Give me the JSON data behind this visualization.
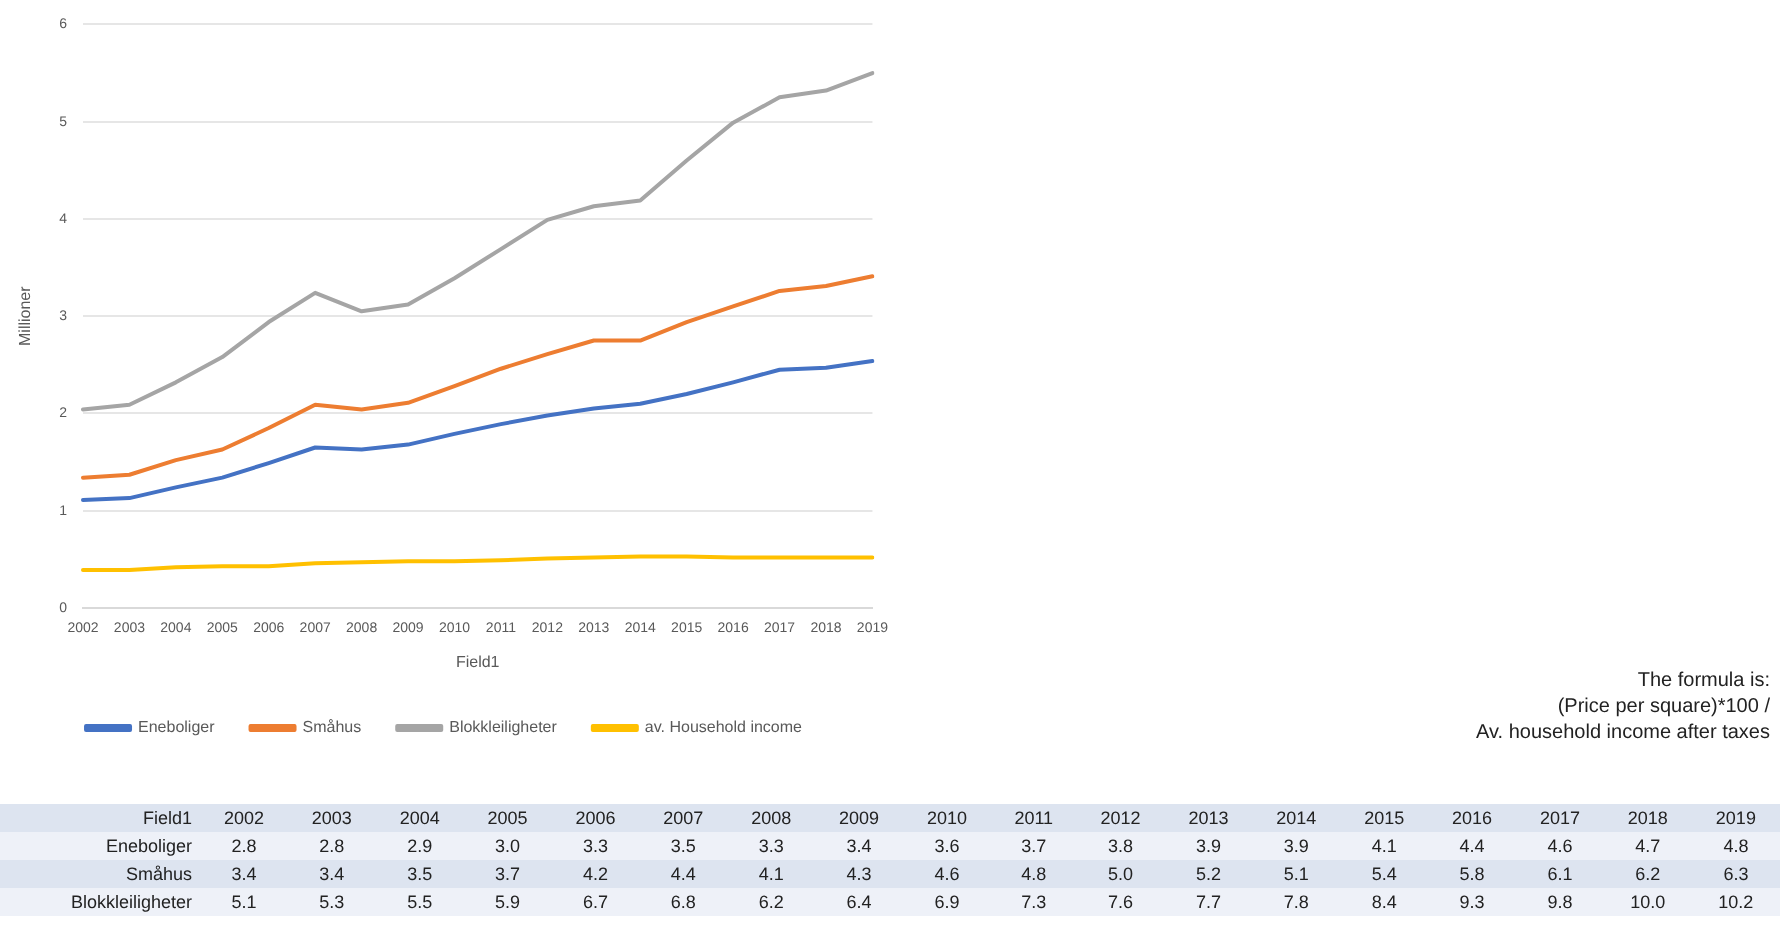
{
  "chart_data": [
    {
      "type": "line",
      "xlabel": "Field1",
      "ylabel": "Millioner",
      "categories": [
        "2002",
        "2003",
        "2004",
        "2005",
        "2006",
        "2007",
        "2008",
        "2009",
        "2010",
        "2011",
        "2012",
        "2013",
        "2014",
        "2015",
        "2016",
        "2017",
        "2018",
        "2019"
      ],
      "series": [
        {
          "name": "Eneboliger",
          "color": "#4472c4",
          "values": [
            1.11,
            1.13,
            1.24,
            1.34,
            1.49,
            1.65,
            1.63,
            1.68,
            1.79,
            1.89,
            1.98,
            2.05,
            2.1,
            2.2,
            2.32,
            2.45,
            2.47,
            2.54
          ]
        },
        {
          "name": "Småhus",
          "color": "#ed7d31",
          "values": [
            1.34,
            1.37,
            1.52,
            1.63,
            1.85,
            2.09,
            2.04,
            2.11,
            2.28,
            2.46,
            2.61,
            2.75,
            2.75,
            2.94,
            3.1,
            3.26,
            3.31,
            3.41
          ]
        },
        {
          "name": "Blokkleiligheter",
          "color": "#a5a5a5",
          "values": [
            2.04,
            2.09,
            2.32,
            2.58,
            2.94,
            3.24,
            3.05,
            3.12,
            3.39,
            3.69,
            3.99,
            4.13,
            4.19,
            4.6,
            4.99,
            5.25,
            5.32,
            5.5
          ]
        },
        {
          "name": "av. Household income",
          "color": "#ffc000",
          "values": [
            0.39,
            0.39,
            0.42,
            0.43,
            0.43,
            0.46,
            0.47,
            0.48,
            0.48,
            0.49,
            0.51,
            0.52,
            0.53,
            0.53,
            0.52,
            0.52,
            0.52,
            0.52
          ]
        }
      ],
      "ylim": [
        0,
        6
      ],
      "yticks": [
        0,
        1,
        2,
        3,
        4,
        5,
        6
      ],
      "grid": "y",
      "legend": "bottom",
      "marker": "none",
      "line_style": "solid",
      "annotations": [
        "The formula is:",
        "(Price per square)*100 /",
        "Av. household income after taxes"
      ]
    },
    {
      "type": "heatmap",
      "xlabel": "Field1",
      "categories": [
        "2002",
        "2003",
        "2004",
        "2005",
        "2006",
        "2007",
        "2008",
        "2009",
        "2010",
        "2011",
        "2012",
        "2013",
        "2014",
        "2015",
        "2016",
        "2017",
        "2018",
        "2019"
      ],
      "y_categories": [
        "Eneboliger",
        "Småhus",
        "Blokkleiligheter"
      ],
      "cells": [
        [
          2.8,
          2.8,
          2.9,
          3.0,
          3.3,
          3.5,
          3.3,
          3.4,
          3.6,
          3.7,
          3.8,
          3.9,
          3.9,
          4.1,
          4.4,
          4.6,
          4.7,
          4.8
        ],
        [
          3.4,
          3.4,
          3.5,
          3.7,
          4.2,
          4.4,
          4.1,
          4.3,
          4.6,
          4.8,
          5.0,
          5.2,
          5.1,
          5.4,
          5.8,
          6.1,
          6.2,
          6.3
        ],
        [
          5.1,
          5.3,
          5.5,
          5.9,
          6.7,
          6.8,
          6.2,
          6.4,
          6.9,
          7.3,
          7.6,
          7.7,
          7.8,
          8.4,
          9.3,
          9.8,
          10.0,
          10.2
        ]
      ],
      "cell_labels": [
        [
          "2.8",
          "2.8",
          "2.9",
          "3.0",
          "3.3",
          "3.5",
          "3.3",
          "3.4",
          "3.6",
          "3.7",
          "3.8",
          "3.9",
          "3.9",
          "4.1",
          "4.4",
          "4.6",
          "4.7",
          "4.8"
        ],
        [
          "3.4",
          "3.4",
          "3.5",
          "3.7",
          "4.2",
          "4.4",
          "4.1",
          "4.3",
          "4.6",
          "4.8",
          "5.0",
          "5.2",
          "5.1",
          "5.4",
          "5.8",
          "6.1",
          "6.2",
          "6.3"
        ],
        [
          "5.1",
          "5.3",
          "5.5",
          "5.9",
          "6.7",
          "6.8",
          "6.2",
          "6.4",
          "6.9",
          "7.3",
          "7.6",
          "7.7",
          "7.8",
          "8.4",
          "9.3",
          "9.8",
          "10.0",
          "10.2"
        ]
      ]
    }
  ]
}
